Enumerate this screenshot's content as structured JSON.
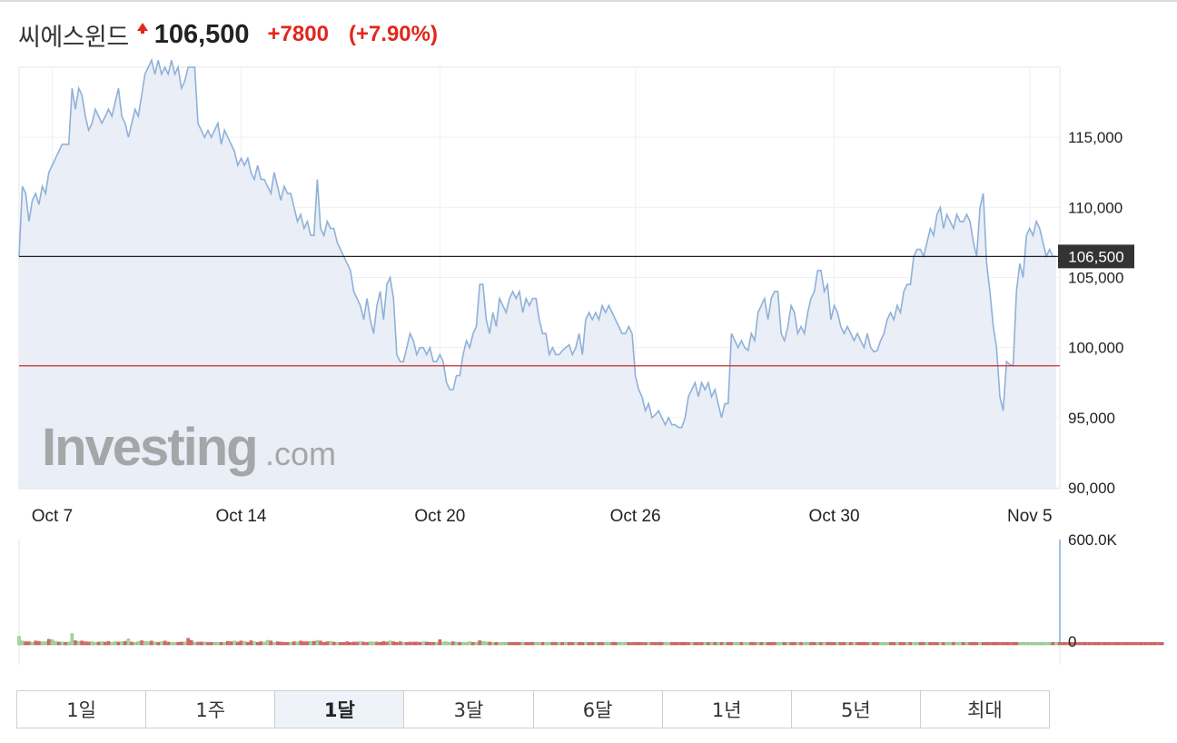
{
  "header": {
    "name": "씨에스윈드",
    "price": "106,500",
    "change": "+7800",
    "change_pct": "(+7.90%)",
    "direction_icon": "up-triangle-icon",
    "up_color": "#e1271d"
  },
  "watermark": {
    "brand": "Investing",
    "suffix": ".com"
  },
  "current_price_label": "106,500",
  "tabs": [
    {
      "label": "1일",
      "active": false
    },
    {
      "label": "1주",
      "active": false
    },
    {
      "label": "1달",
      "active": true
    },
    {
      "label": "3달",
      "active": false
    },
    {
      "label": "6달",
      "active": false
    },
    {
      "label": "1년",
      "active": false
    },
    {
      "label": "5년",
      "active": false
    },
    {
      "label": "최대",
      "active": false
    }
  ],
  "chart_data": {
    "type": "area",
    "title": "",
    "xlabel": "",
    "ylabel": "",
    "ylim": [
      90000,
      120000
    ],
    "y_ticks": [
      "90,000",
      "95,000",
      "100,000",
      "105,000",
      "110,000",
      "115,000"
    ],
    "x_ticks": [
      {
        "label": "Oct 7",
        "index": 10
      },
      {
        "label": "Oct 14",
        "index": 67
      },
      {
        "label": "Oct 20",
        "index": 127
      },
      {
        "label": "Oct 26",
        "index": 186
      },
      {
        "label": "Oct 30",
        "index": 246
      },
      {
        "label": "Nov 5",
        "index": 305
      }
    ],
    "current_price": 106500,
    "previous_close": 98700,
    "colors": {
      "line": "#8fb1d8",
      "area": "#e9eef7",
      "current_line": "#222222",
      "prev_close_line": "#cc2a2a",
      "vol_up": "#a9d6a1",
      "vol_down": "#d86a6a"
    },
    "price_series": [
      106500,
      111500,
      111000,
      109000,
      110500,
      111000,
      110200,
      111500,
      111000,
      112500,
      113000,
      113500,
      114000,
      114500,
      114500,
      114500,
      118500,
      117000,
      118500,
      118000,
      116500,
      115500,
      116000,
      117000,
      116500,
      116000,
      116500,
      117000,
      116500,
      117500,
      118500,
      116500,
      116000,
      115000,
      116000,
      117000,
      116500,
      118000,
      119500,
      120000,
      120500,
      119500,
      120500,
      119500,
      120000,
      119500,
      120500,
      119500,
      120000,
      118500,
      119000,
      120000,
      120000,
      120000,
      116000,
      115500,
      115000,
      115500,
      115000,
      115500,
      116000,
      114500,
      115500,
      115000,
      114500,
      114000,
      113000,
      113500,
      113000,
      113500,
      112500,
      112000,
      113000,
      112000,
      112000,
      111500,
      111000,
      112500,
      111500,
      110500,
      111500,
      111000,
      111000,
      110000,
      109000,
      109500,
      108500,
      109000,
      108000,
      108000,
      112000,
      108500,
      108000,
      109000,
      108500,
      108500,
      107500,
      107000,
      106500,
      106000,
      105500,
      104000,
      103500,
      103000,
      102000,
      103500,
      102000,
      101000,
      103000,
      104000,
      102000,
      104500,
      105000,
      103500,
      99500,
      99000,
      99000,
      100000,
      101000,
      100500,
      99500,
      100000,
      100000,
      99500,
      100000,
      99000,
      99000,
      99500,
      99000,
      97500,
      97000,
      97000,
      98000,
      98000,
      99500,
      100500,
      100000,
      101000,
      101500,
      104500,
      104500,
      102000,
      101000,
      102500,
      101500,
      103500,
      103000,
      102500,
      103500,
      104000,
      103500,
      104000,
      102500,
      103500,
      103000,
      103500,
      103500,
      102000,
      101000,
      101000,
      99500,
      100000,
      99500,
      99500,
      99800,
      100000,
      100200,
      99500,
      100000,
      101000,
      99500,
      102000,
      102500,
      102000,
      102500,
      102000,
      103000,
      102500,
      103000,
      102500,
      102000,
      101500,
      101000,
      101000,
      101500,
      101000,
      98000,
      97000,
      96500,
      95500,
      96000,
      95000,
      95200,
      95500,
      95000,
      94500,
      95000,
      94500,
      94500,
      94300,
      94300,
      95000,
      96500,
      97000,
      97500,
      96500,
      97500,
      97000,
      97500,
      96500,
      97000,
      96000,
      95000,
      96000,
      96000,
      101000,
      100500,
      100000,
      100500,
      100000,
      99800,
      101000,
      100500,
      102500,
      103000,
      103500,
      102000,
      103500,
      104000,
      104000,
      101000,
      100500,
      101500,
      103000,
      102500,
      101000,
      101500,
      101000,
      102500,
      103500,
      104000,
      105500,
      105500,
      104000,
      104500,
      102000,
      103000,
      102500,
      101500,
      101000,
      101500,
      101000,
      100500,
      101000,
      100500,
      100000,
      101000,
      100000,
      99700,
      99800,
      100500,
      101000,
      102000,
      102500,
      102000,
      103000,
      102500,
      104000,
      104500,
      104500,
      106500,
      107000,
      107000,
      106500,
      107500,
      108500,
      108000,
      109500,
      110000,
      108500,
      109500,
      109000,
      108500,
      109500,
      109000,
      109000,
      109500,
      109000,
      107500,
      106500,
      110000,
      111000,
      106000,
      104000,
      101500,
      100000,
      96500,
      95500,
      99000,
      98800,
      98700,
      104000,
      106000,
      105000,
      108000,
      108500,
      108000,
      109000,
      108500,
      107500,
      106500,
      107000,
      106500,
      106500
    ],
    "volume_up": [
      true,
      true,
      false,
      false,
      true,
      false,
      false,
      true,
      true,
      false,
      true,
      true,
      false,
      true,
      false,
      true,
      true,
      false,
      true,
      false,
      false,
      false,
      true,
      true,
      false,
      true,
      false,
      false,
      true,
      true,
      false,
      true,
      false,
      true,
      false,
      true,
      true,
      false,
      true,
      true,
      false,
      true,
      false,
      true,
      false,
      false,
      true,
      true,
      false,
      false,
      true,
      false,
      false,
      true,
      false,
      false,
      true,
      false,
      false,
      true,
      true,
      false,
      true,
      false,
      false,
      true,
      false,
      false,
      true,
      false,
      false,
      true,
      false,
      false,
      true,
      true,
      false,
      true,
      false,
      false,
      false,
      false,
      true,
      false,
      true,
      false,
      false,
      false,
      true,
      false,
      true,
      false,
      false,
      false,
      true,
      false,
      true,
      false,
      false,
      false,
      false,
      false,
      false,
      true,
      false,
      false,
      true,
      true,
      false,
      false,
      false,
      false,
      true,
      false,
      false,
      false,
      true,
      false,
      false,
      false,
      false,
      false,
      true,
      false,
      false,
      false,
      true,
      false,
      true,
      true,
      true,
      false,
      true,
      false,
      true,
      true,
      true,
      false,
      true,
      false,
      true,
      true,
      false,
      true,
      false,
      true,
      true,
      true,
      false,
      false,
      false,
      false,
      true,
      false,
      false,
      false,
      true,
      true,
      false,
      true,
      true,
      false,
      false,
      true,
      false,
      true,
      false,
      false,
      true,
      false,
      false,
      true,
      false,
      false,
      true,
      false,
      false,
      true,
      true,
      false,
      false,
      true,
      true,
      true,
      false,
      false,
      false,
      false,
      false,
      false,
      true,
      false,
      false,
      false,
      false,
      true,
      true,
      false,
      false,
      false,
      false,
      false,
      false,
      true,
      false,
      false,
      false,
      true,
      false,
      true,
      false,
      true,
      false,
      true,
      false,
      false,
      true,
      true,
      false,
      true,
      true,
      false,
      false,
      true,
      false,
      true,
      false,
      false,
      false,
      true,
      true,
      false,
      true,
      false,
      false,
      true,
      false,
      true,
      true,
      false,
      false,
      true,
      false,
      true,
      false,
      false,
      false,
      true,
      false,
      false,
      true,
      false,
      true,
      false,
      false,
      false,
      false,
      true,
      false,
      false,
      true,
      true,
      true,
      false,
      false,
      true,
      false,
      false,
      true,
      false,
      true,
      true,
      false,
      false,
      true,
      false,
      false,
      false,
      true,
      false,
      true,
      true,
      false,
      true,
      true,
      false,
      true,
      false,
      false,
      false,
      true,
      false,
      false,
      false,
      false,
      false,
      false,
      false,
      false,
      false,
      false,
      false,
      true,
      true,
      true,
      true,
      true,
      true,
      true,
      true,
      true,
      true,
      false,
      true,
      false,
      false
    ],
    "volume": [
      48,
      22,
      18,
      18,
      15,
      22,
      20,
      18,
      18,
      32,
      30,
      20,
      16,
      16,
      14,
      16,
      64,
      24,
      20,
      22,
      18,
      16,
      18,
      14,
      16,
      18,
      16,
      20,
      14,
      18,
      16,
      18,
      20,
      34,
      16,
      14,
      18,
      24,
      20,
      18,
      22,
      16,
      14,
      18,
      22,
      16,
      14,
      14,
      14,
      16,
      16,
      38,
      26,
      14,
      16,
      16,
      16,
      14,
      14,
      14,
      14,
      14,
      14,
      20,
      18,
      22,
      16,
      22,
      20,
      14,
      24,
      18,
      14,
      18,
      16,
      26,
      22,
      14,
      18,
      16,
      14,
      14,
      14,
      18,
      16,
      22,
      18,
      18,
      20,
      20,
      26,
      22,
      14,
      18,
      20,
      16,
      14,
      14,
      14,
      18,
      14,
      16,
      16,
      18,
      16,
      14,
      18,
      16,
      16,
      14,
      20,
      16,
      22,
      18,
      14,
      18,
      14,
      14,
      16,
      16,
      16,
      14,
      18,
      16,
      14,
      14,
      14,
      30,
      16,
      18,
      14,
      18,
      16,
      14,
      14,
      14,
      18,
      14,
      14,
      24,
      20,
      16,
      16,
      14,
      14,
      14,
      14,
      14,
      14,
      14,
      14,
      14,
      14,
      14,
      14,
      14,
      14,
      14,
      14,
      14,
      14,
      14,
      14,
      14,
      14,
      14,
      14,
      14,
      14,
      14,
      14,
      14,
      14,
      14,
      14,
      14,
      14,
      14,
      14,
      14,
      14,
      14,
      14,
      14,
      14,
      14,
      14,
      14,
      14,
      14,
      14,
      14,
      14,
      14,
      14,
      14,
      14,
      14,
      14,
      14,
      14,
      14,
      14,
      14,
      14,
      14,
      14,
      14,
      14,
      14,
      14,
      14,
      14,
      14,
      14,
      14,
      14,
      14,
      14,
      14,
      14,
      14,
      14,
      14,
      14,
      14,
      14,
      14,
      14,
      14,
      14,
      14,
      14,
      14,
      14,
      14,
      14,
      14,
      14,
      14,
      14,
      14,
      14,
      14,
      14,
      14,
      14,
      14,
      14,
      14,
      14,
      14,
      14,
      14,
      14,
      14,
      14,
      14,
      14,
      14,
      14,
      14,
      14,
      14,
      14,
      14,
      14,
      14,
      14,
      14,
      14,
      14,
      14,
      14,
      14,
      14,
      14,
      14,
      14,
      14,
      14,
      14,
      14,
      14,
      14,
      14,
      14,
      14,
      14,
      14,
      14,
      14,
      14,
      14,
      14,
      14,
      14,
      14,
      14,
      14,
      14,
      14,
      14,
      14,
      14,
      14,
      14,
      14,
      14,
      14,
      14,
      14,
      14,
      14,
      14,
      14,
      14,
      14,
      14,
      14,
      14,
      14,
      14,
      14,
      14,
      14,
      14,
      14,
      14,
      14,
      14,
      14,
      14,
      14,
      14,
      14,
      14,
      14,
      14,
      14,
      14,
      14,
      14,
      14,
      14,
      14
    ],
    "volume_ylim": [
      0,
      600000
    ],
    "volume_ticks": [
      "600.0K",
      "0"
    ]
  }
}
